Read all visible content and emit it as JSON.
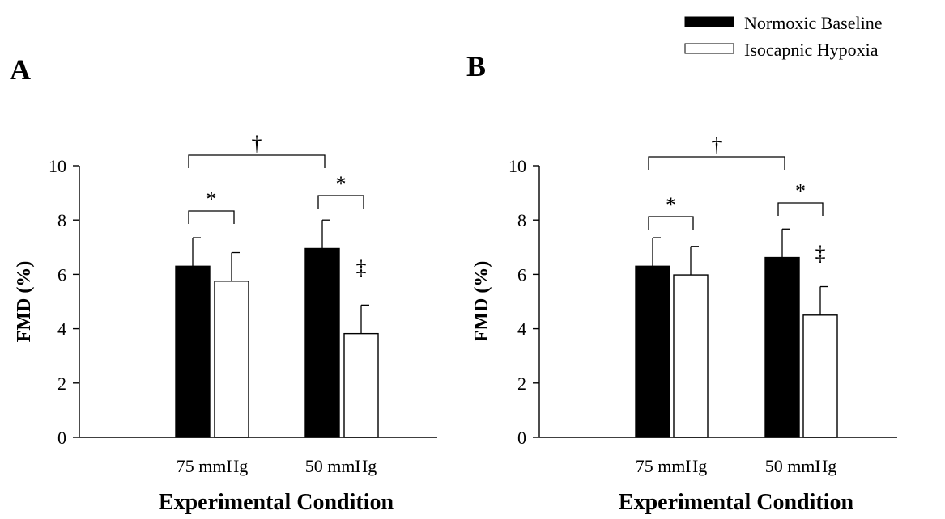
{
  "legend": {
    "entries": [
      {
        "label": "Normoxic Baseline",
        "fill": "#000000"
      },
      {
        "label": "Isocapnic Hypoxia",
        "fill": "#ffffff"
      }
    ],
    "placement": "top-right"
  },
  "chart_data": [
    {
      "panel": "A",
      "type": "bar",
      "categories": [
        "75 mmHg",
        "50 mmHg"
      ],
      "series": [
        {
          "name": "Normoxic Baseline",
          "values": [
            6.3,
            6.95
          ],
          "errors": [
            1.05,
            1.05
          ],
          "color": "#000000"
        },
        {
          "name": "Isocapnic Hypoxia",
          "values": [
            5.75,
            3.82
          ],
          "errors": [
            1.05,
            1.05
          ],
          "color": "#ffffff"
        }
      ],
      "ylabel": "FMD (%)",
      "xlabel": "Experimental Condition",
      "ylim": [
        0,
        10
      ],
      "yticks": [
        "0",
        "2",
        "4",
        "6",
        "8",
        "10"
      ],
      "grid": false,
      "annotations": {
        "pair_brackets": [
          {
            "symbol": "*"
          },
          {
            "symbol": "*"
          }
        ],
        "between_conditions": {
          "symbol": "†"
        },
        "vs_75": {
          "symbol": "‡"
        }
      }
    },
    {
      "panel": "B",
      "type": "bar",
      "categories": [
        "75 mmHg",
        "50 mmHg"
      ],
      "series": [
        {
          "name": "Normoxic Baseline",
          "values": [
            6.3,
            6.62
          ],
          "errors": [
            1.05,
            1.05
          ],
          "color": "#000000"
        },
        {
          "name": "Isocapnic Hypoxia",
          "values": [
            5.98,
            4.5
          ],
          "errors": [
            1.05,
            1.05
          ],
          "color": "#ffffff"
        }
      ],
      "ylabel": "FMD (%)",
      "xlabel": "Experimental Condition",
      "ylim": [
        0,
        10
      ],
      "yticks": [
        "0",
        "2",
        "4",
        "6",
        "8",
        "10"
      ],
      "grid": false,
      "annotations": {
        "pair_brackets": [
          {
            "symbol": "*"
          },
          {
            "symbol": "*"
          }
        ],
        "between_conditions": {
          "symbol": "†"
        },
        "vs_75": {
          "symbol": "‡"
        }
      }
    }
  ]
}
